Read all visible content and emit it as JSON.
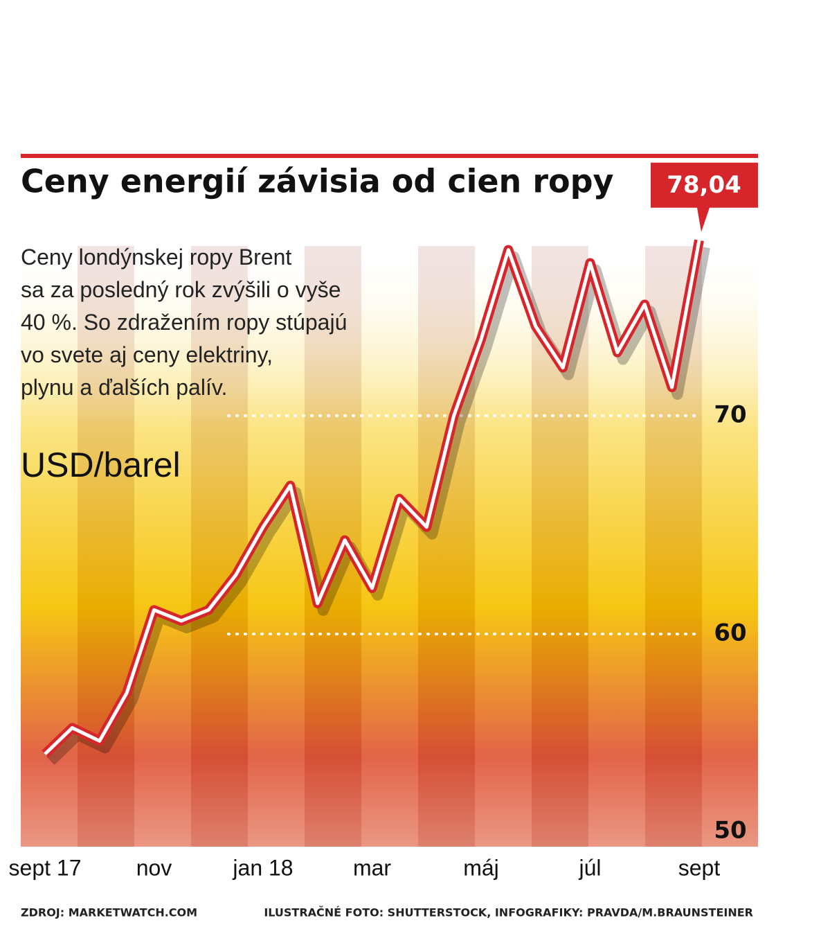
{
  "chart_data": {
    "type": "line",
    "title": "Ceny energií závisia od cien ropy",
    "description": [
      "Ceny londýnskej ropy Brent",
      "sa za posledný rok zvýšili o vyše",
      "40 %. So zdražením ropy stúpajú",
      "vo svete aj ceny elektriny,",
      "plynu a ďalších palív."
    ],
    "ylabel": "USD/barel",
    "categories": [
      "sept 17",
      null,
      null,
      null,
      "nov",
      null,
      null,
      null,
      "jan 18",
      null,
      null,
      null,
      "mar",
      null,
      null,
      null,
      "máj",
      null,
      null,
      null,
      "júl",
      null,
      null,
      null,
      "sept"
    ],
    "series": [
      {
        "name": "Brent",
        "color": "#d7262b",
        "values": [
          54.5,
          55.7,
          55.1,
          57.3,
          61.1,
          60.6,
          61.1,
          62.7,
          64.9,
          66.8,
          61.4,
          64.3,
          62.1,
          66.2,
          64.9,
          70,
          73.5,
          77.6,
          74.1,
          72.2,
          77,
          72.9,
          75.1,
          71.3,
          78.04
        ],
        "value_labels": [
          null,
          null,
          null,
          null,
          null,
          null,
          null,
          null,
          null,
          null,
          null,
          null,
          null,
          null,
          null,
          null,
          null,
          null,
          null,
          null,
          null,
          null,
          null,
          null,
          "78,04"
        ]
      }
    ],
    "ylim": [
      50,
      79
    ],
    "yticks": [
      50,
      60,
      70
    ],
    "grid": true,
    "source": "ZDROJ: MARKETWATCH.COM",
    "credit": "ILUSTRAČNÉ FOTO: SHUTTERSTOCK, INFOGRAFIKY: PRAVDA/M.BRAUNSTEINER"
  }
}
